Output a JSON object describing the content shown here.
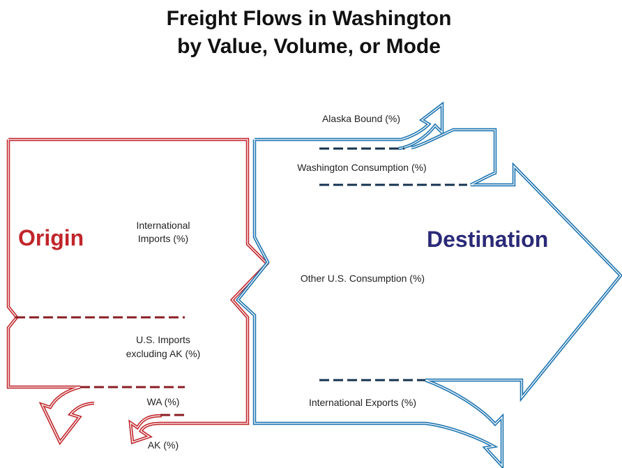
{
  "title": [
    "Freight Flows in Washington",
    "by Value, Volume, or Mode"
  ],
  "origin": {
    "heading": "Origin",
    "labels": [
      [
        "International",
        "Imports (%)"
      ],
      [
        "U.S. Imports",
        "excluding AK (%)"
      ],
      [
        "WA (%)"
      ],
      [
        "AK (%)"
      ]
    ]
  },
  "destination": {
    "heading": "Destination",
    "labels": [
      [
        "Alaska Bound (%)"
      ],
      [
        "Washington Consumption (%)"
      ],
      [
        "Other U.S. Consumption (%)"
      ],
      [
        "International Exports (%)"
      ]
    ]
  }
}
